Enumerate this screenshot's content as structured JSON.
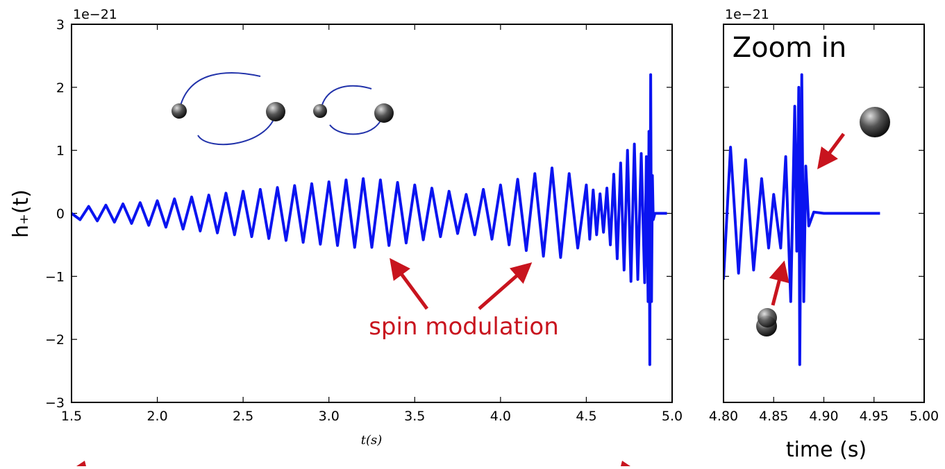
{
  "chart_data": [
    {
      "type": "line",
      "offset_label": "1e−21",
      "ylabel": "h₊(t)",
      "xlabel": "t(s)",
      "annotations": [
        "spin modulation"
      ],
      "xlim": [
        1.5,
        5.0
      ],
      "ylim": [
        -3,
        3
      ],
      "xticks": [
        {
          "value": 1.5,
          "label": "1.5"
        },
        {
          "value": 2.0,
          "label": "2.0"
        },
        {
          "value": 2.5,
          "label": "2.5"
        },
        {
          "value": 3.0,
          "label": "3.0"
        },
        {
          "value": 3.5,
          "label": "3.5"
        },
        {
          "value": 4.0,
          "label": "4.0"
        },
        {
          "value": 4.5,
          "label": "4.5"
        },
        {
          "value": 5.0,
          "label": "5.0"
        }
      ],
      "yticks": [
        {
          "value": -3,
          "label": "−3"
        },
        {
          "value": -2,
          "label": "−2"
        },
        {
          "value": -1,
          "label": "−1"
        },
        0,
        1,
        2,
        3
      ],
      "ytick_labels": true,
      "x": [
        1.5,
        1.55,
        1.6,
        1.65,
        1.7,
        1.75,
        1.8,
        1.85,
        1.9,
        1.95,
        2.0,
        2.05,
        2.1,
        2.15,
        2.2,
        2.25,
        2.3,
        2.35,
        2.4,
        2.45,
        2.5,
        2.55,
        2.6,
        2.65,
        2.7,
        2.75,
        2.8,
        2.85,
        2.9,
        2.95,
        3.0,
        3.05,
        3.1,
        3.15,
        3.2,
        3.25,
        3.3,
        3.35,
        3.4,
        3.45,
        3.5,
        3.55,
        3.6,
        3.65,
        3.7,
        3.75,
        3.8,
        3.85,
        3.9,
        3.95,
        4.0,
        4.05,
        4.1,
        4.15,
        4.2,
        4.25,
        4.3,
        4.35,
        4.4,
        4.45,
        4.5,
        4.52,
        4.54,
        4.56,
        4.58,
        4.6,
        4.62,
        4.64,
        4.66,
        4.68,
        4.7,
        4.72,
        4.74,
        4.76,
        4.78,
        4.8,
        4.82,
        4.84,
        4.85,
        4.86,
        4.865,
        4.87,
        4.875,
        4.88,
        4.885,
        4.89,
        4.9,
        4.97
      ],
      "series": [
        {
          "color": "#0a14f0",
          "values": [
            0,
            -0.1,
            0.11,
            -0.12,
            0.13,
            -0.14,
            0.15,
            -0.16,
            0.17,
            -0.19,
            0.2,
            -0.22,
            0.23,
            -0.25,
            0.26,
            -0.28,
            0.29,
            -0.31,
            0.32,
            -0.34,
            0.35,
            -0.37,
            0.38,
            -0.4,
            0.41,
            -0.43,
            0.44,
            -0.46,
            0.47,
            -0.49,
            0.5,
            -0.51,
            0.53,
            -0.54,
            0.55,
            -0.54,
            0.53,
            -0.51,
            0.49,
            -0.47,
            0.45,
            -0.42,
            0.4,
            -0.37,
            0.35,
            -0.32,
            0.3,
            -0.34,
            0.38,
            -0.41,
            0.45,
            -0.5,
            0.54,
            -0.59,
            0.63,
            -0.68,
            0.72,
            -0.7,
            0.63,
            -0.55,
            0.45,
            -0.41,
            0.37,
            -0.34,
            0.31,
            -0.3,
            0.4,
            -0.5,
            0.62,
            -0.72,
            0.8,
            -0.9,
            1.0,
            -1.08,
            1.1,
            -1.05,
            0.95,
            -1.1,
            0.9,
            -1.4,
            1.3,
            -2.4,
            2.2,
            -1.4,
            0.6,
            -0.1,
            0,
            0
          ]
        }
      ]
    },
    {
      "type": "line",
      "offset_label": "1e−21",
      "xlabel": "time (s)",
      "annotations": [
        "Zoom in"
      ],
      "xlim": [
        4.8,
        5.0
      ],
      "ylim": [
        -3,
        3
      ],
      "xticks": [
        {
          "value": 4.8,
          "label": "4.80"
        },
        {
          "value": 4.85,
          "label": "4.85"
        },
        {
          "value": 4.9,
          "label": "4.90"
        },
        {
          "value": 4.95,
          "label": "4.95"
        },
        {
          "value": 5.0,
          "label": "5.00"
        }
      ],
      "yticks": [
        -3,
        -2,
        -1,
        0,
        1,
        2,
        3
      ],
      "ytick_labels": false,
      "x": [
        4.8,
        4.807,
        4.815,
        4.822,
        4.83,
        4.838,
        4.845,
        4.85,
        4.857,
        4.862,
        4.867,
        4.871,
        4.873,
        4.875,
        4.876,
        4.878,
        4.88,
        4.882,
        4.885,
        4.89,
        4.9,
        4.956
      ],
      "series": [
        {
          "color": "#0a14f0",
          "values": [
            -1.05,
            1.05,
            -0.95,
            0.85,
            -0.9,
            0.55,
            -0.55,
            0.3,
            -0.55,
            0.9,
            -1.4,
            1.7,
            -0.6,
            2.0,
            -2.4,
            2.2,
            -1.4,
            0.75,
            -0.2,
            0.02,
            0,
            0
          ]
        }
      ]
    }
  ]
}
